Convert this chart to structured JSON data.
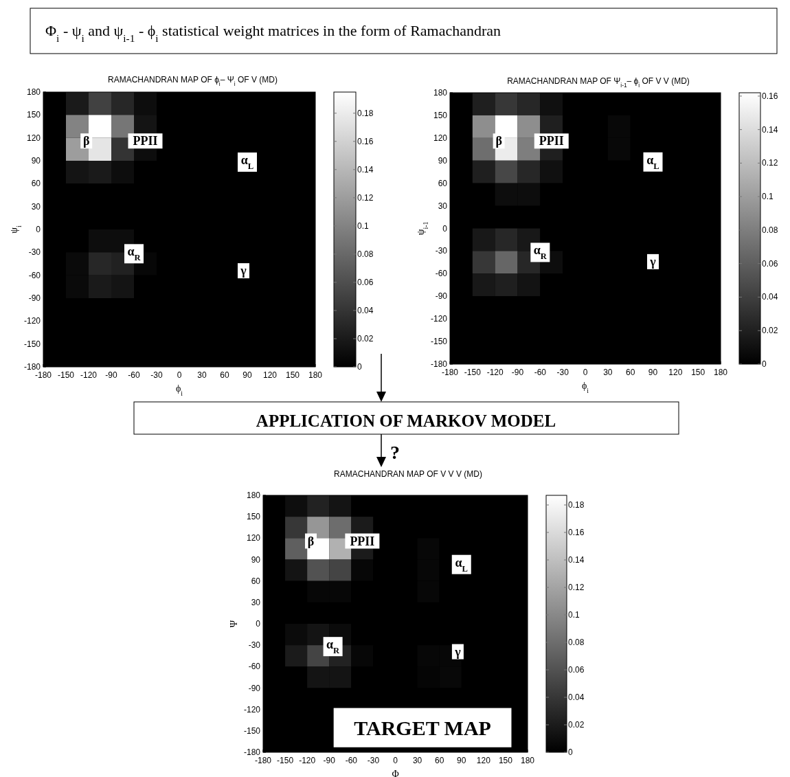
{
  "chart_data": [
    {
      "type": "other",
      "title": "Φ$_{i}$ - ψ$_{i}$ and ψ$_{i-1}$ - ϕ$_{i}$ statistical weight matrices in the form of Ramachandran",
      "annotations": [
        "APPLICATION OF MARKOV MODEL",
        "?"
      ]
    },
    {
      "type": "heatmap",
      "title": "RAMACHANDRAN MAP OF ϕ$_{i}$– Ψ$_{i}$ OF V (MD)",
      "xlabel": "ϕ$_{i}$",
      "ylabel": "ψ$_{i}$",
      "xlim": [
        -180,
        180
      ],
      "ylim": [
        -180,
        180
      ],
      "xticks": [
        -180,
        -150,
        -120,
        -90,
        -60,
        -30,
        0,
        30,
        60,
        90,
        120,
        150,
        180
      ],
      "yticks": [
        -180,
        -150,
        -120,
        -90,
        -60,
        -30,
        0,
        30,
        60,
        90,
        120,
        150,
        180
      ],
      "clim": [
        0,
        0.195
      ],
      "cticks": [
        0,
        0.02,
        0.04,
        0.06,
        0.08,
        0.1,
        0.12,
        0.14,
        0.16,
        0.18
      ],
      "cells": [
        [
          0,
          0.02,
          0.05,
          0.03,
          0.01,
          0,
          0,
          0,
          0,
          0,
          0,
          0
        ],
        [
          0,
          0.1,
          0.195,
          0.09,
          0.015,
          0,
          0,
          0,
          0,
          0,
          0,
          0
        ],
        [
          0,
          0.12,
          0.175,
          0.04,
          0.01,
          0,
          0,
          0,
          0,
          0,
          0,
          0
        ],
        [
          0,
          0.015,
          0.02,
          0.01,
          0,
          0,
          0,
          0,
          0,
          0,
          0,
          0
        ],
        [
          0,
          0,
          0,
          0,
          0,
          0,
          0,
          0,
          0,
          0,
          0,
          0
        ],
        [
          0,
          0,
          0,
          0,
          0,
          0,
          0,
          0,
          0,
          0,
          0,
          0
        ],
        [
          0,
          0,
          0.01,
          0.01,
          0,
          0,
          0,
          0,
          0,
          0,
          0,
          0
        ],
        [
          0,
          0.008,
          0.03,
          0.025,
          0.005,
          0,
          0,
          0,
          0,
          0,
          0,
          0
        ],
        [
          0,
          0.008,
          0.02,
          0.015,
          0,
          0,
          0,
          0,
          0,
          0,
          0,
          0
        ],
        [
          0,
          0,
          0,
          0,
          0,
          0,
          0,
          0,
          0,
          0,
          0,
          0
        ],
        [
          0,
          0,
          0,
          0,
          0,
          0,
          0,
          0,
          0,
          0,
          0,
          0
        ],
        [
          0,
          0,
          0,
          0,
          0,
          0,
          0,
          0,
          0,
          0,
          0,
          0
        ]
      ],
      "annotations": [
        "β",
        "PPII",
        "α$_{L}$",
        "α$_{R}$",
        "γ"
      ]
    },
    {
      "type": "heatmap",
      "title": "RAMACHANDRAN MAP OF Ψ$_{i-1}$– ϕ$_{i}$ OF V V (MD)",
      "xlabel": "ϕ$_{i}$",
      "ylabel": "ψ$_{i-1}$",
      "xlim": [
        -180,
        180
      ],
      "ylim": [
        -180,
        180
      ],
      "xticks": [
        -180,
        -150,
        -120,
        -90,
        -60,
        -30,
        0,
        30,
        60,
        90,
        120,
        150,
        180
      ],
      "yticks": [
        -180,
        -150,
        -120,
        -90,
        -60,
        -30,
        0,
        30,
        60,
        90,
        120,
        150,
        180
      ],
      "clim": [
        0,
        0.162
      ],
      "cticks": [
        0,
        0.02,
        0.04,
        0.06,
        0.08,
        0.1,
        0.12,
        0.14,
        0.16
      ],
      "cells": [
        [
          0,
          0.02,
          0.035,
          0.025,
          0.01,
          0,
          0,
          0,
          0,
          0,
          0,
          0
        ],
        [
          0,
          0.09,
          0.162,
          0.09,
          0.02,
          0,
          0,
          0.005,
          0,
          0,
          0,
          0
        ],
        [
          0,
          0.07,
          0.15,
          0.08,
          0.02,
          0,
          0,
          0.005,
          0,
          0,
          0,
          0
        ],
        [
          0,
          0.02,
          0.045,
          0.025,
          0.01,
          0,
          0,
          0,
          0,
          0,
          0,
          0
        ],
        [
          0,
          0,
          0.008,
          0.008,
          0,
          0,
          0,
          0,
          0,
          0,
          0,
          0
        ],
        [
          0,
          0,
          0,
          0,
          0,
          0,
          0,
          0,
          0,
          0,
          0,
          0
        ],
        [
          0,
          0.015,
          0.025,
          0.015,
          0,
          0,
          0,
          0,
          0,
          0,
          0,
          0
        ],
        [
          0,
          0.035,
          0.065,
          0.025,
          0.008,
          0,
          0,
          0,
          0,
          0,
          0,
          0
        ],
        [
          0,
          0.015,
          0.02,
          0.012,
          0,
          0,
          0,
          0,
          0,
          0,
          0,
          0
        ],
        [
          0,
          0,
          0,
          0,
          0,
          0,
          0,
          0,
          0,
          0,
          0,
          0
        ],
        [
          0,
          0,
          0,
          0,
          0,
          0,
          0,
          0,
          0,
          0,
          0,
          0
        ],
        [
          0,
          0,
          0,
          0,
          0,
          0,
          0,
          0,
          0,
          0,
          0,
          0
        ]
      ],
      "annotations": [
        "β",
        "PPII",
        "α$_{L}$",
        "α$_{R}$",
        "γ"
      ]
    },
    {
      "type": "heatmap",
      "title": "RAMACHANDRAN MAP OF V V V (MD)",
      "xlabel": "Φ",
      "ylabel": "Ψ",
      "xlim": [
        -180,
        180
      ],
      "ylim": [
        -180,
        180
      ],
      "xticks": [
        -180,
        -150,
        -120,
        -90,
        -60,
        -30,
        0,
        30,
        60,
        90,
        120,
        150,
        180
      ],
      "yticks": [
        -180,
        -150,
        -120,
        -90,
        -60,
        -30,
        0,
        30,
        60,
        90,
        120,
        150,
        180
      ],
      "clim": [
        0,
        0.187
      ],
      "cticks": [
        0,
        0.02,
        0.04,
        0.06,
        0.08,
        0.1,
        0.12,
        0.14,
        0.16,
        0.18
      ],
      "cells": [
        [
          0,
          0.01,
          0.025,
          0.015,
          0,
          0,
          0,
          0,
          0,
          0,
          0,
          0
        ],
        [
          0,
          0.04,
          0.11,
          0.08,
          0.02,
          0,
          0,
          0,
          0,
          0,
          0,
          0
        ],
        [
          0,
          0.07,
          0.187,
          0.13,
          0.02,
          0,
          0,
          0.005,
          0,
          0,
          0,
          0
        ],
        [
          0,
          0.015,
          0.06,
          0.05,
          0.005,
          0,
          0,
          0.005,
          0,
          0,
          0,
          0
        ],
        [
          0,
          0,
          0.005,
          0.005,
          0,
          0,
          0,
          0.005,
          0,
          0,
          0,
          0
        ],
        [
          0,
          0,
          0,
          0,
          0,
          0,
          0,
          0,
          0,
          0,
          0,
          0
        ],
        [
          0,
          0.008,
          0.015,
          0.008,
          0,
          0,
          0,
          0,
          0,
          0,
          0,
          0
        ],
        [
          0,
          0.02,
          0.05,
          0.025,
          0.005,
          0,
          0,
          0.005,
          0.005,
          0,
          0,
          0
        ],
        [
          0,
          0,
          0.015,
          0.015,
          0,
          0,
          0,
          0.004,
          0.006,
          0,
          0,
          0
        ],
        [
          0,
          0,
          0,
          0,
          0,
          0,
          0,
          0,
          0,
          0,
          0,
          0
        ],
        [
          0,
          0,
          0,
          null,
          null,
          null,
          null,
          null,
          null,
          null,
          null,
          0
        ],
        [
          0,
          0,
          0,
          null,
          null,
          null,
          null,
          null,
          null,
          null,
          null,
          0
        ]
      ],
      "annotations": [
        "β",
        "PPII",
        "α$_{L}$",
        "α$_{R}$",
        "γ",
        "TARGET MAP"
      ]
    }
  ]
}
